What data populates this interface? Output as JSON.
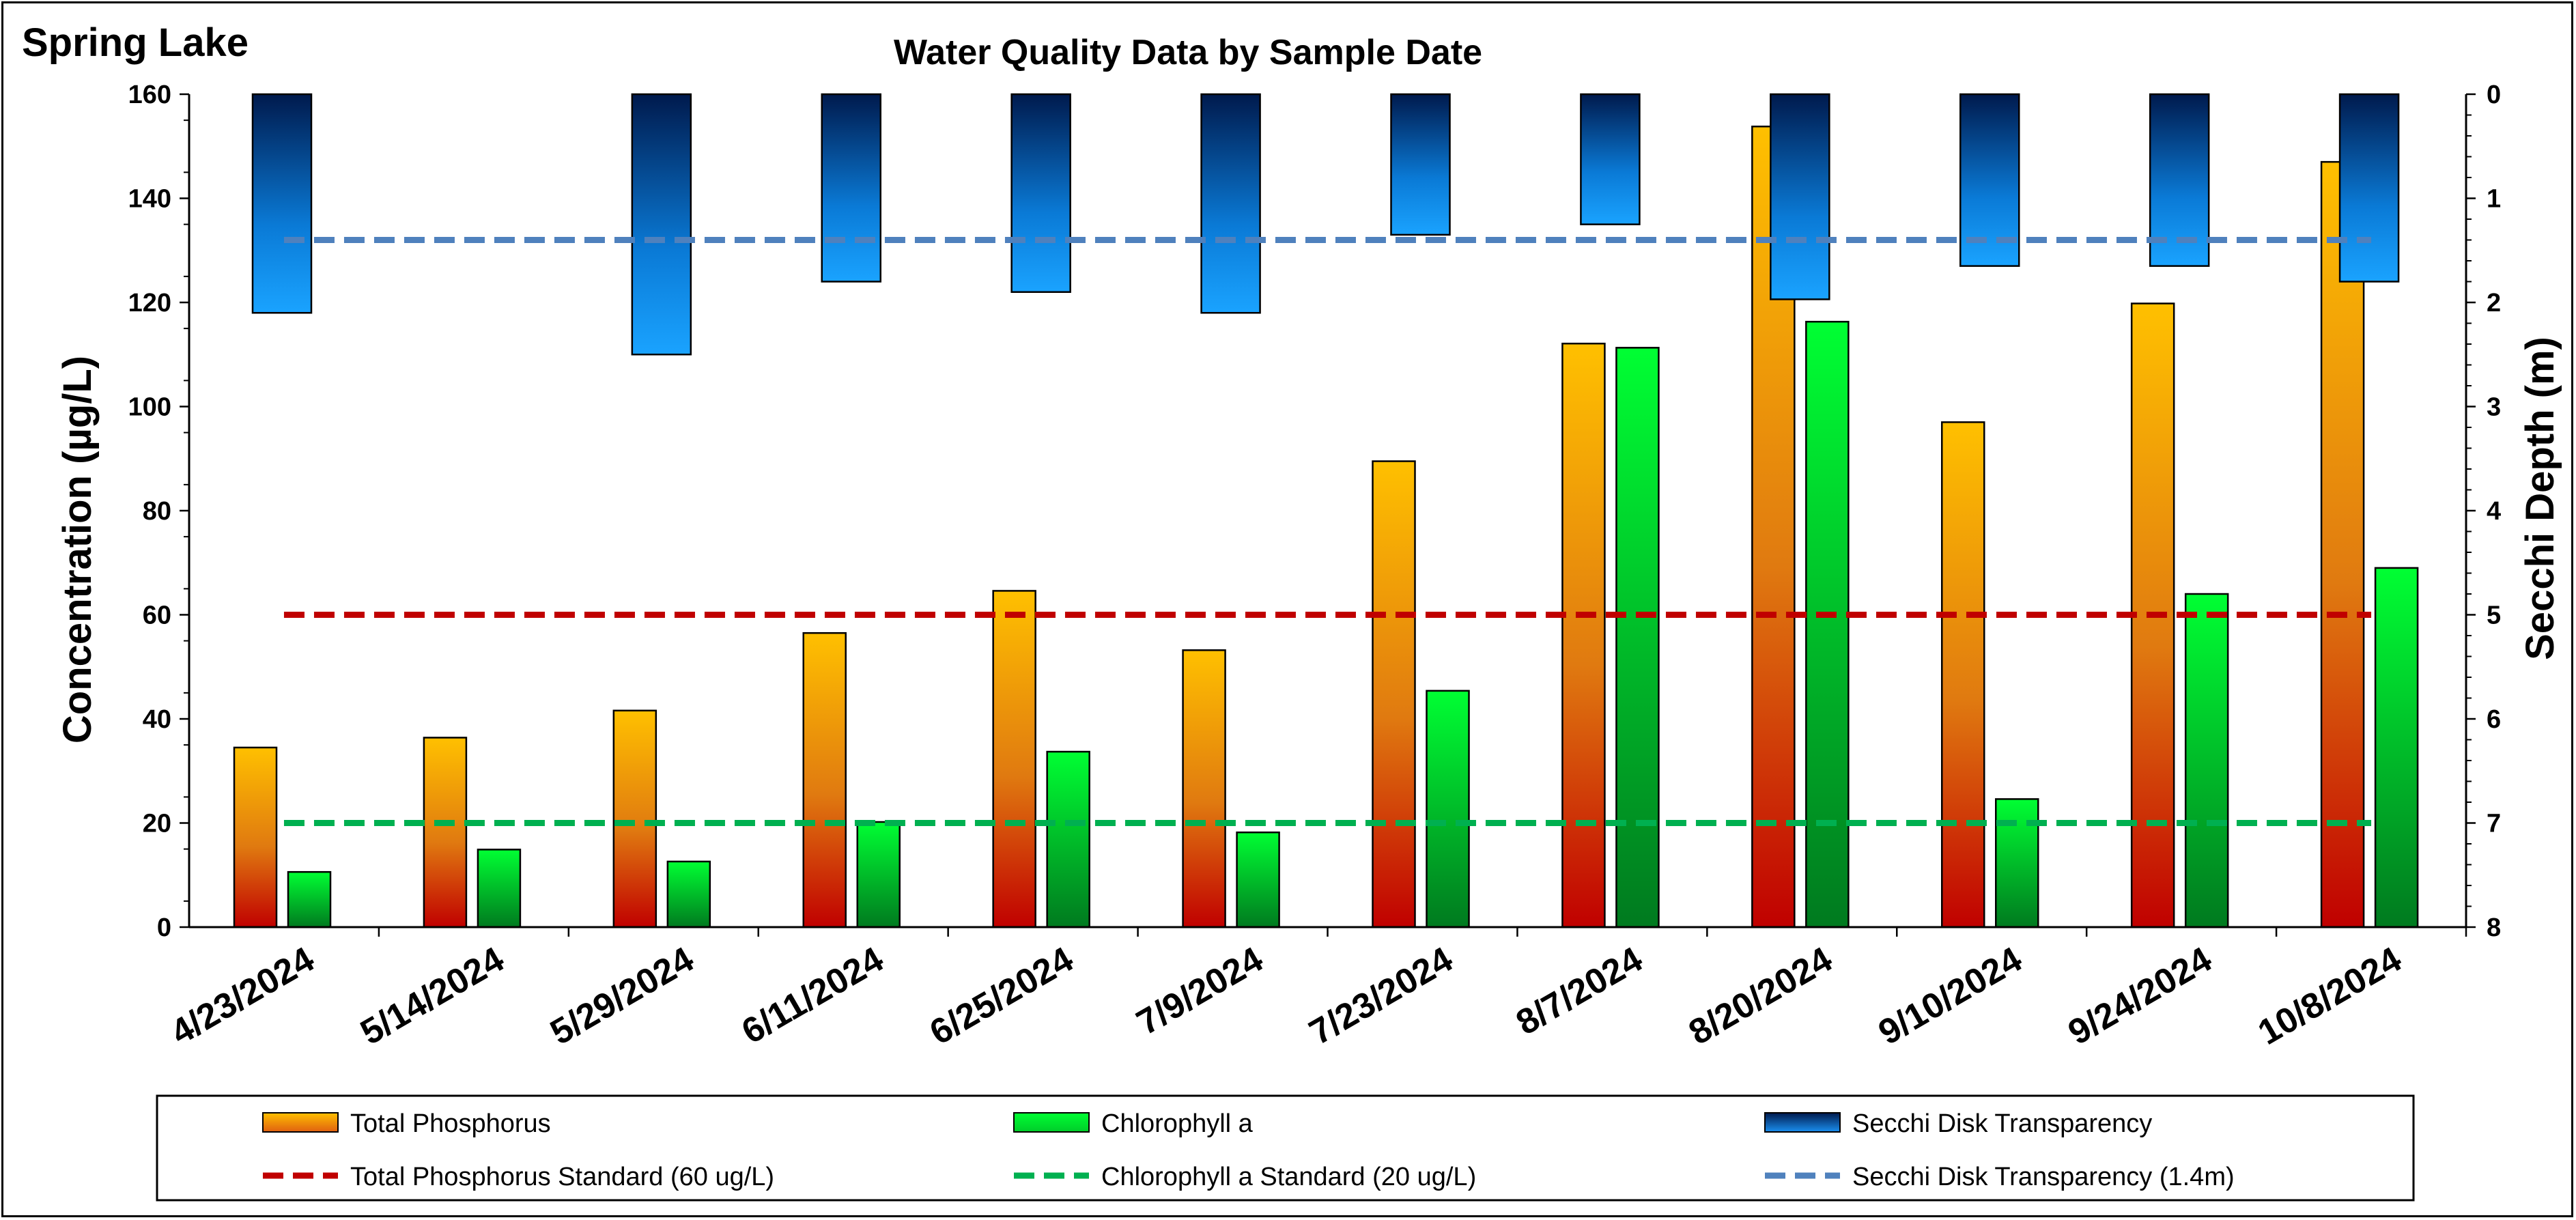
{
  "header": {
    "lake_name": "Spring Lake"
  },
  "chart_data": {
    "type": "bar",
    "title": "Water Quality Data by Sample Date",
    "categories": [
      "4/23/2024",
      "5/14/2024",
      "5/29/2024",
      "6/11/2024",
      "6/25/2024",
      "7/9/2024",
      "7/23/2024",
      "8/7/2024",
      "8/20/2024",
      "9/10/2024",
      "9/24/2024",
      "10/8/2024"
    ],
    "ylabel": "Concentration (µg/L)",
    "ylim": [
      0,
      160
    ],
    "yticks": [
      "0",
      "20",
      "40",
      "60",
      "80",
      "100",
      "120",
      "140",
      "160"
    ],
    "y2label": "Secchi Depth (m)",
    "y2lim": [
      0,
      8
    ],
    "y2_inverted": true,
    "y2ticks": [
      "0",
      "1",
      "2",
      "3",
      "4",
      "5",
      "6",
      "7",
      "8"
    ],
    "series": [
      {
        "name": "Total Phosphorus",
        "axis": "left",
        "values": [
          34.5,
          36.4,
          41.6,
          56.5,
          64.6,
          53.2,
          89.5,
          112.1,
          153.8,
          97.0,
          119.8,
          147.0
        ],
        "color_top": "#ffc000",
        "color_bottom": "#c00000"
      },
      {
        "name": "Chlorophyll a",
        "axis": "left",
        "values": [
          10.6,
          14.9,
          12.6,
          20.2,
          33.7,
          18.2,
          45.4,
          111.3,
          116.3,
          24.6,
          64.0,
          69.0
        ],
        "color_top": "#00ff33",
        "color_bottom": "#007a1f"
      },
      {
        "name": "Secchi Disk Transparency",
        "axis": "right",
        "values": [
          2.1,
          null,
          2.5,
          1.8,
          1.9,
          2.1,
          1.35,
          1.25,
          1.97,
          1.65,
          1.65,
          1.8
        ],
        "color_top": "#001a4d",
        "color_bottom": "#1aa3ff"
      }
    ],
    "reference_lines": [
      {
        "name": "Total Phosphorus Standard (60 ug/L)",
        "axis": "left",
        "value": 60,
        "color": "#c00000"
      },
      {
        "name": "Chlorophyll a Standard (20 ug/L)",
        "axis": "left",
        "value": 20,
        "color": "#00b050"
      },
      {
        "name": "Secchi Disk Transparency (1.4m)",
        "axis": "right",
        "value": 1.4,
        "color": "#4f81bd"
      }
    ],
    "legend_position": "bottom",
    "grid": false
  }
}
